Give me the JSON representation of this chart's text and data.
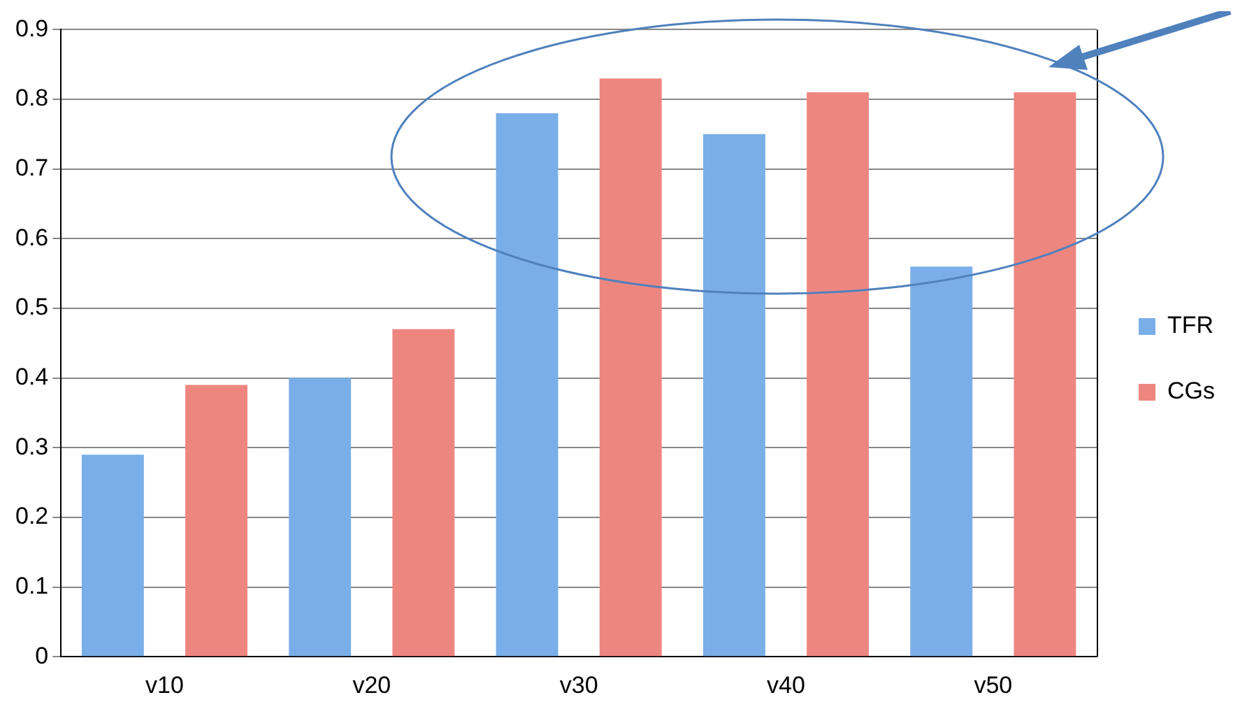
{
  "chart_data": {
    "type": "bar",
    "categories": [
      "v10",
      "v20",
      "v30",
      "v40",
      "v50"
    ],
    "series": [
      {
        "name": "TFR",
        "color": "#7aaee8",
        "values": [
          0.29,
          0.4,
          0.78,
          0.75,
          0.56
        ]
      },
      {
        "name": "CGs",
        "color": "#ee8680",
        "values": [
          0.39,
          0.47,
          0.83,
          0.81,
          0.81
        ]
      }
    ],
    "ylim": [
      0,
      0.9
    ],
    "yticks": [
      {
        "value": 0,
        "label": "0"
      },
      0.1,
      0.2,
      0.3,
      0.4,
      0.5,
      0.6,
      0.7,
      0.8,
      0.9
    ],
    "grid": "y",
    "legend": "right"
  }
}
